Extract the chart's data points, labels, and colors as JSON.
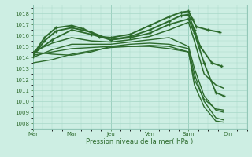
{
  "background_color": "#cdeee3",
  "grid_color": "#a8d8c8",
  "line_color": "#2d6b2d",
  "xlim": [
    0,
    5.5
  ],
  "ylim": [
    1007.5,
    1018.8
  ],
  "yticks": [
    1008,
    1009,
    1010,
    1011,
    1012,
    1013,
    1014,
    1015,
    1016,
    1017,
    1018
  ],
  "xtick_labels": [
    "Mar",
    "Mar",
    "Jeu",
    "Ven",
    "Sam",
    "Din"
  ],
  "xtick_positions": [
    0,
    1,
    2,
    3,
    4,
    5
  ],
  "xlabel": "Pression niveau de la mer( hPa )",
  "series": [
    {
      "x": [
        0.0,
        0.3,
        0.6,
        1.0,
        1.3,
        1.7,
        2.0,
        2.5,
        3.0,
        3.5,
        3.8,
        4.0,
        4.1,
        4.2,
        4.5,
        4.8
      ],
      "y": [
        1014.2,
        1015.8,
        1016.7,
        1016.9,
        1016.6,
        1015.9,
        1015.8,
        1016.1,
        1016.9,
        1017.7,
        1018.1,
        1018.2,
        1017.5,
        1016.8,
        1016.5,
        1016.3
      ],
      "marker": true,
      "lw": 1.4
    },
    {
      "x": [
        0.0,
        0.3,
        0.6,
        1.0,
        1.5,
        2.0,
        2.5,
        3.0,
        3.5,
        3.8,
        4.0,
        4.15,
        4.3,
        4.6,
        4.85
      ],
      "y": [
        1014.1,
        1015.5,
        1016.4,
        1016.7,
        1016.3,
        1015.6,
        1015.9,
        1016.5,
        1017.3,
        1017.8,
        1017.9,
        1016.5,
        1015.0,
        1013.5,
        1013.2
      ],
      "marker": true,
      "lw": 1.4
    },
    {
      "x": [
        0.0,
        0.5,
        1.0,
        1.5,
        2.0,
        2.5,
        3.0,
        3.5,
        4.0,
        4.15,
        4.4,
        4.7,
        4.9
      ],
      "y": [
        1014.3,
        1015.6,
        1016.5,
        1016.1,
        1015.6,
        1015.8,
        1016.2,
        1017.0,
        1017.5,
        1016.2,
        1013.5,
        1010.8,
        1010.5
      ],
      "marker": true,
      "lw": 1.3
    },
    {
      "x": [
        0.0,
        0.5,
        1.0,
        1.5,
        2.0,
        2.5,
        3.0,
        3.5,
        4.0,
        4.15,
        4.4,
        4.7,
        4.9
      ],
      "y": [
        1014.5,
        1015.3,
        1015.8,
        1015.5,
        1015.4,
        1015.6,
        1015.9,
        1016.5,
        1017.2,
        1015.5,
        1012.5,
        1011.5,
        1011.2
      ],
      "marker": false,
      "lw": 1.1
    },
    {
      "x": [
        0.0,
        0.5,
        1.0,
        1.5,
        2.0,
        2.5,
        3.0,
        3.5,
        4.0,
        4.15,
        4.4,
        4.7,
        4.9
      ],
      "y": [
        1014.0,
        1014.7,
        1015.2,
        1015.2,
        1015.2,
        1015.4,
        1015.6,
        1015.8,
        1015.0,
        1013.0,
        1010.5,
        1009.2,
        1009.0
      ],
      "marker": false,
      "lw": 1.0
    },
    {
      "x": [
        0.0,
        0.5,
        1.0,
        1.5,
        2.0,
        2.5,
        3.0,
        3.5,
        4.0,
        4.15,
        4.4,
        4.7,
        4.9
      ],
      "y": [
        1014.2,
        1014.5,
        1014.8,
        1014.9,
        1015.0,
        1015.2,
        1015.3,
        1015.2,
        1014.8,
        1012.5,
        1010.0,
        1008.5,
        1008.3
      ],
      "marker": false,
      "lw": 1.0
    },
    {
      "x": [
        0.0,
        0.5,
        1.0,
        1.5,
        2.0,
        2.5,
        3.0,
        3.5,
        4.0,
        4.15,
        4.4,
        4.7,
        4.9
      ],
      "y": [
        1013.5,
        1013.8,
        1014.3,
        1014.6,
        1014.9,
        1015.0,
        1015.1,
        1015.0,
        1014.5,
        1012.0,
        1010.2,
        1009.3,
        1009.2
      ],
      "marker": false,
      "lw": 1.0
    },
    {
      "x": [
        0.0,
        0.5,
        1.0,
        1.5,
        2.0,
        2.5,
        3.0,
        3.5,
        4.0,
        4.15,
        4.4,
        4.7,
        4.9
      ],
      "y": [
        1014.5,
        1014.3,
        1014.2,
        1014.5,
        1015.0,
        1015.0,
        1015.0,
        1014.8,
        1014.5,
        1011.5,
        1009.5,
        1008.2,
        1008.1
      ],
      "marker": false,
      "lw": 1.0
    }
  ]
}
